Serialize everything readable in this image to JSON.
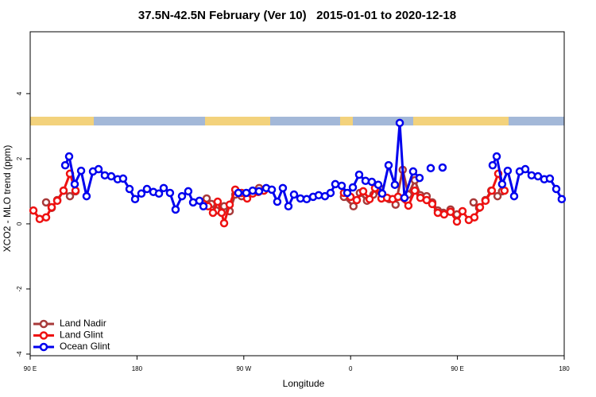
{
  "chart_data": {
    "type": "line",
    "title": "37.5N-42.5N February (Ver 10)   2015-01-01 to 2020-12-18",
    "x_label": "Longitude",
    "y_label": "XCO2 - MLO trend (ppm)",
    "xlim": [
      90,
      540
    ],
    "xticks": [
      {
        "value": 90,
        "label": "90 E"
      },
      {
        "value": 180,
        "label": "180"
      },
      {
        "value": 270,
        "label": "90 W"
      },
      {
        "value": 360,
        "label": "0"
      },
      {
        "value": 450,
        "label": "90 E"
      },
      {
        "value": 540,
        "label": "180"
      }
    ],
    "ylim": [
      -4.05,
      5.9
    ],
    "yticks": [
      -4,
      -2,
      0,
      2,
      4
    ],
    "legend": "bottom-left",
    "series": [
      {
        "name": "Land Nadir",
        "color": "#a83a3a",
        "x": [
          103.4,
          108.1,
          112.8,
          118.1,
          123.5,
          128.2,
          null,
          238.7,
          242.7,
          246.7,
          253.4,
          258.1,
          262.8,
          268.1,
          272.8,
          277.5,
          282.9,
          287.6,
          null,
          354.4,
          362.4,
          367.8,
          373.8,
          379.2,
          384.5,
          392.6,
          397.9,
          403.9,
          408.7,
          414.1,
          418.8,
          424.1,
          428.8,
          433.5,
          438.1,
          444.2,
          449.6,
          null,
          463.6,
          468.3,
          473.6,
          478.5,
          483.8,
          487.6
        ],
        "values": [
          0.66,
          0.49,
          0.73,
          1.02,
          0.85,
          1.0,
          null,
          0.78,
          0.61,
          0.41,
          0.54,
          0.39,
          0.9,
          0.85,
          0.9,
          1.0,
          1.1,
          1.05,
          null,
          0.83,
          0.54,
          0.95,
          0.71,
          0.9,
          1.1,
          0.76,
          0.59,
          1.66,
          0.9,
          1.34,
          0.88,
          0.85,
          0.66,
          0.41,
          0.34,
          0.44,
          0.29,
          null,
          0.66,
          0.49,
          0.73,
          1.02,
          0.85,
          1.0
        ]
      },
      {
        "name": "Land Glint",
        "color": "#ee1111",
        "x": [
          92.7,
          98.0,
          103.4,
          108.1,
          112.8,
          118.1,
          123.5,
          128.2,
          null,
          236.0,
          240.0,
          244.0,
          248.0,
          251.3,
          253.4,
          258.1,
          262.8,
          268.1,
          272.8,
          277.5,
          282.2,
          286.9,
          null,
          354.4,
          359.9,
          365.2,
          370.6,
          376.0,
          380.6,
          386.0,
          390.7,
          395.4,
          400.0,
          408.7,
          414.1,
          418.8,
          424.1,
          428.8,
          433.5,
          438.8,
          444.2,
          449.6,
          454.3,
          459.6,
          464.3,
          469.0,
          473.7,
          479.0,
          484.4,
          489.7
        ],
        "values": [
          0.41,
          0.15,
          0.2,
          0.51,
          0.71,
          1.02,
          1.54,
          1.02,
          null,
          0.61,
          0.54,
          0.34,
          0.68,
          0.34,
          0.02,
          0.59,
          1.05,
          0.95,
          0.78,
          0.93,
          0.98,
          1.02,
          null,
          0.95,
          0.83,
          0.73,
          1.0,
          0.76,
          1.1,
          0.78,
          0.8,
          0.76,
          0.83,
          0.56,
          1.02,
          0.8,
          0.73,
          0.61,
          0.34,
          0.29,
          0.37,
          0.07,
          0.39,
          0.12,
          0.2,
          0.51,
          0.71,
          1.02,
          1.54,
          1.02
        ]
      },
      {
        "name": "Ocean Glint",
        "color": "#0000ee",
        "x": [
          119.5,
          122.8,
          127.5,
          132.9,
          137.5,
          142.9,
          147.6,
          152.9,
          158.3,
          163.7,
          168.3,
          173.7,
          178.4,
          183.7,
          188.4,
          193.8,
          198.5,
          202.5,
          207.8,
          212.5,
          217.9,
          223.2,
          227.3,
          232.6,
          236.0,
          null,
          265.4,
          272.1,
          277.5,
          282.8,
          288.9,
          293.6,
          298.2,
          302.9,
          307.6,
          312.3,
          317.7,
          323.0,
          328.4,
          333.1,
          338.4,
          343.1,
          347.1,
          352.5,
          357.2,
          361.9,
          367.2,
          372.6,
          377.9,
          383.3,
          386.6,
          392.0,
          397.3,
          401.4,
          405.4,
          412.7,
          418.1,
          null,
          427.5,
          null,
          437.5,
          null,
          479.7,
          483.1,
          487.7,
          492.4,
          497.8,
          502.5,
          507.2,
          512.5,
          517.9,
          523.2,
          527.9,
          533.3,
          537.9
        ],
        "values": [
          1.8,
          2.07,
          1.22,
          1.63,
          0.85,
          1.61,
          1.68,
          1.49,
          1.46,
          1.37,
          1.39,
          1.07,
          0.76,
          0.93,
          1.07,
          0.98,
          0.93,
          1.1,
          0.95,
          0.44,
          0.85,
          1.0,
          0.66,
          0.71,
          0.54,
          null,
          0.95,
          0.95,
          1.02,
          1.0,
          1.1,
          1.05,
          0.68,
          1.1,
          0.54,
          0.9,
          0.78,
          0.76,
          0.83,
          0.88,
          0.85,
          0.95,
          1.22,
          1.17,
          0.95,
          1.12,
          1.51,
          1.32,
          1.29,
          1.2,
          0.93,
          1.8,
          1.2,
          3.1,
          0.8,
          1.61,
          1.41,
          null,
          1.71,
          null,
          1.73,
          null,
          1.8,
          2.07,
          1.22,
          1.63,
          0.85,
          1.61,
          1.68,
          1.49,
          1.46,
          1.37,
          1.39,
          1.07,
          0.76
        ]
      }
    ]
  }
}
